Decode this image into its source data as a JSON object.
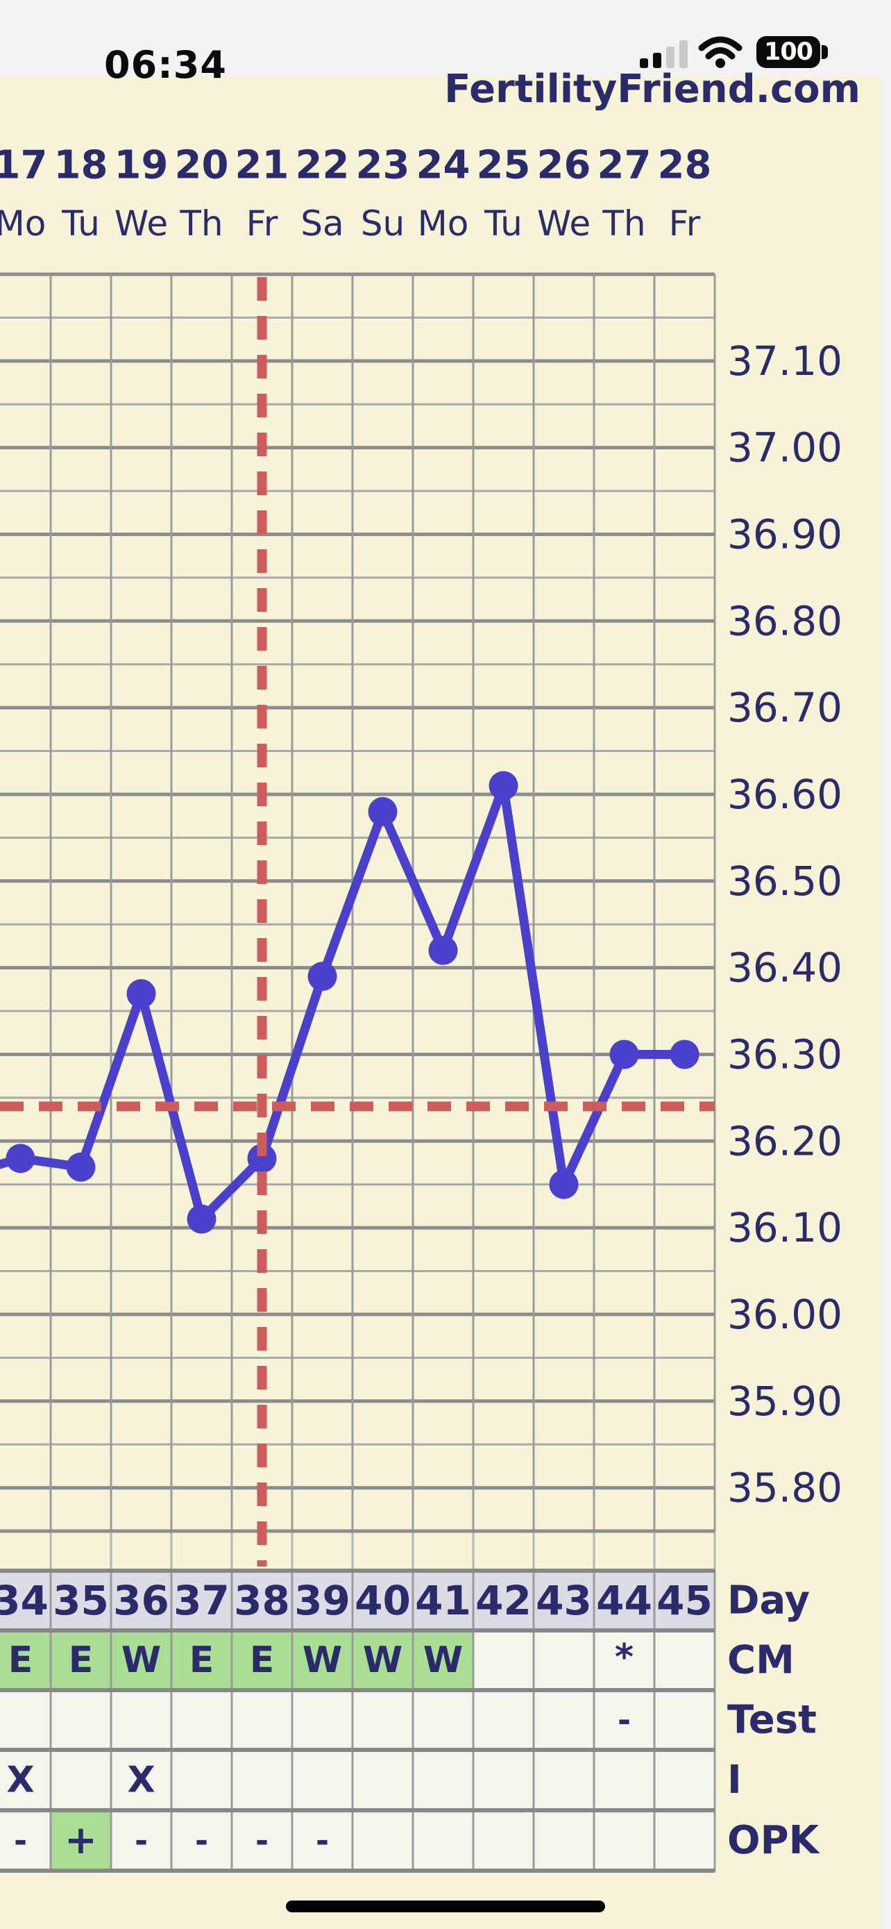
{
  "status_bar": {
    "time": "06:34",
    "battery_level": "100",
    "signal_bars_filled": 2,
    "signal_bars_total": 4
  },
  "header": {
    "site_title": "FertilityFriend.com"
  },
  "chart_data": {
    "type": "line",
    "title": "Basal body temperature chart",
    "x_axis": {
      "cycle_days": [
        34,
        35,
        36,
        37,
        38,
        39,
        40,
        41,
        42,
        43,
        44,
        45
      ],
      "dates": [
        "17",
        "18",
        "19",
        "20",
        "21",
        "22",
        "23",
        "24",
        "25",
        "26",
        "27",
        "28"
      ],
      "weekdays": [
        "Mo",
        "Tu",
        "We",
        "Th",
        "Fr",
        "Sa",
        "Su",
        "Mo",
        "Tu",
        "We",
        "Th",
        "Fr"
      ]
    },
    "y_axis": {
      "tick_labels": [
        "37.10",
        "37.00",
        "36.90",
        "36.80",
        "36.70",
        "36.60",
        "36.50",
        "36.40",
        "36.30",
        "36.20",
        "36.10",
        "36.00",
        "35.90",
        "35.80"
      ],
      "top_temp": 37.2,
      "bottom_temp": 35.75,
      "minor_step": 0.05,
      "major_step": 0.1,
      "unit": "celsius"
    },
    "series": [
      {
        "name": "temperature",
        "days": [
          33,
          34,
          35,
          36,
          37,
          38,
          39,
          40,
          41,
          42,
          43,
          44,
          45
        ],
        "values": [
          36.16,
          36.18,
          36.17,
          36.37,
          36.11,
          36.18,
          36.39,
          36.58,
          36.42,
          36.61,
          36.15,
          36.3,
          36.3
        ],
        "note": "day 33 point lies off-screen left; only its connecting segment is visible"
      }
    ],
    "coverline_temp": 36.24,
    "ovulation_day": 38,
    "grid": "on",
    "colors": {
      "line": "#4b40cb",
      "crosshair": "#cd5c5c",
      "grid_major": "#8c8c8c",
      "grid_minor": "#a9a9a9",
      "grid_vertical": "#9a9a9a",
      "axis_text": "#2b2b6b",
      "background": "#f6f3d9"
    }
  },
  "table": {
    "rows": [
      {
        "label": "Day",
        "cells": [
          "34",
          "35",
          "36",
          "37",
          "38",
          "39",
          "40",
          "41",
          "42",
          "43",
          "44",
          "45"
        ],
        "green_cells": [
          0,
          0,
          0,
          0,
          0,
          0,
          0,
          0,
          0,
          0,
          0,
          0
        ]
      },
      {
        "label": "CM",
        "cells": [
          "E",
          "E",
          "W",
          "E",
          "E",
          "W",
          "W",
          "W",
          "",
          "",
          "*",
          ""
        ],
        "green_cells": [
          1,
          1,
          1,
          1,
          1,
          1,
          1,
          1,
          0,
          0,
          0,
          0
        ]
      },
      {
        "label": "Test",
        "cells": [
          "",
          "",
          "",
          "",
          "",
          "",
          "",
          "",
          "",
          "",
          "-",
          ""
        ],
        "green_cells": [
          0,
          0,
          0,
          0,
          0,
          0,
          0,
          0,
          0,
          0,
          0,
          0
        ]
      },
      {
        "label": "I",
        "cells": [
          "X",
          "",
          "X",
          "",
          "",
          "",
          "",
          "",
          "",
          "",
          "",
          ""
        ],
        "green_cells": [
          0,
          0,
          0,
          0,
          0,
          0,
          0,
          0,
          0,
          0,
          0,
          0
        ]
      },
      {
        "label": "OPK",
        "cells": [
          "-",
          "+",
          "-",
          "-",
          "-",
          "-",
          "",
          "",
          "",
          "",
          "",
          ""
        ],
        "green_cells": [
          0,
          1,
          0,
          0,
          0,
          0,
          0,
          0,
          0,
          0,
          0,
          0
        ]
      }
    ],
    "colors": {
      "day_row_bg": "#dcdce6",
      "cell_bg": "#f5f5ee",
      "green_cell_bg": "#abde95",
      "text": "#2b2b6b"
    }
  }
}
